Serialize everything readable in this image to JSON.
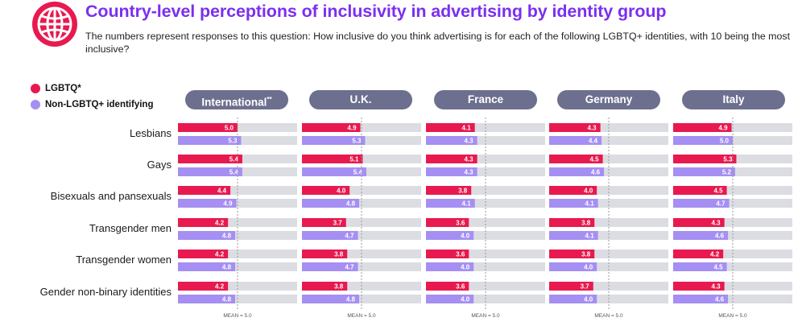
{
  "title": "Country-level perceptions of inclusivity in advertising by identity group",
  "subtitle": "The numbers represent responses to this question: How inclusive do you think advertising is for each of the following LGBTQ+ identities, with 10 being the most inclusive?",
  "colors": {
    "title": "#7b2ff0",
    "lgbtq": "#e8194f",
    "non_lgbtq": "#a58ff2",
    "track": "#dcdde3",
    "pill": "#6d6f8f",
    "icon": "#e8194f"
  },
  "legend": [
    {
      "label": "LGBTQ*",
      "color": "#e8194f"
    },
    {
      "label": "Non-LGBTQ+ identifying",
      "color": "#a58ff2"
    }
  ],
  "mean_label": "MEAN = 5.0",
  "chart_data": {
    "type": "bar",
    "orientation": "horizontal",
    "title": "Country-level perceptions of inclusivity in advertising by identity group",
    "categories": [
      "Lesbians",
      "Gays",
      "Bisexuals and pansexuals",
      "Transgender men",
      "Transgender women",
      "Gender non-binary identities"
    ],
    "xlim": [
      0,
      10
    ],
    "mean": 5.0,
    "series_names": [
      "LGBTQ*",
      "Non-LGBTQ+ identifying"
    ],
    "panels": [
      {
        "name": "International",
        "suffix": "**",
        "lgbtq": [
          5.0,
          5.4,
          4.4,
          4.2,
          4.2,
          4.2
        ],
        "non_lgbtq": [
          5.3,
          5.4,
          4.9,
          4.8,
          4.8,
          4.8
        ]
      },
      {
        "name": "U.K.",
        "suffix": "",
        "lgbtq": [
          4.9,
          5.1,
          4.0,
          3.7,
          3.8,
          3.8
        ],
        "non_lgbtq": [
          5.3,
          5.4,
          4.8,
          4.7,
          4.7,
          4.8
        ]
      },
      {
        "name": "France",
        "suffix": "",
        "lgbtq": [
          4.1,
          4.3,
          3.8,
          3.6,
          3.6,
          3.6
        ],
        "non_lgbtq": [
          4.3,
          4.3,
          4.1,
          4.0,
          4.0,
          4.0
        ]
      },
      {
        "name": "Germany",
        "suffix": "",
        "lgbtq": [
          4.3,
          4.5,
          4.0,
          3.8,
          3.8,
          3.7
        ],
        "non_lgbtq": [
          4.4,
          4.6,
          4.1,
          4.1,
          4.0,
          4.0
        ]
      },
      {
        "name": "Italy",
        "suffix": "",
        "lgbtq": [
          4.9,
          5.3,
          4.5,
          4.3,
          4.2,
          4.3
        ],
        "non_lgbtq": [
          5.0,
          5.2,
          4.7,
          4.6,
          4.5,
          4.6
        ]
      }
    ]
  }
}
